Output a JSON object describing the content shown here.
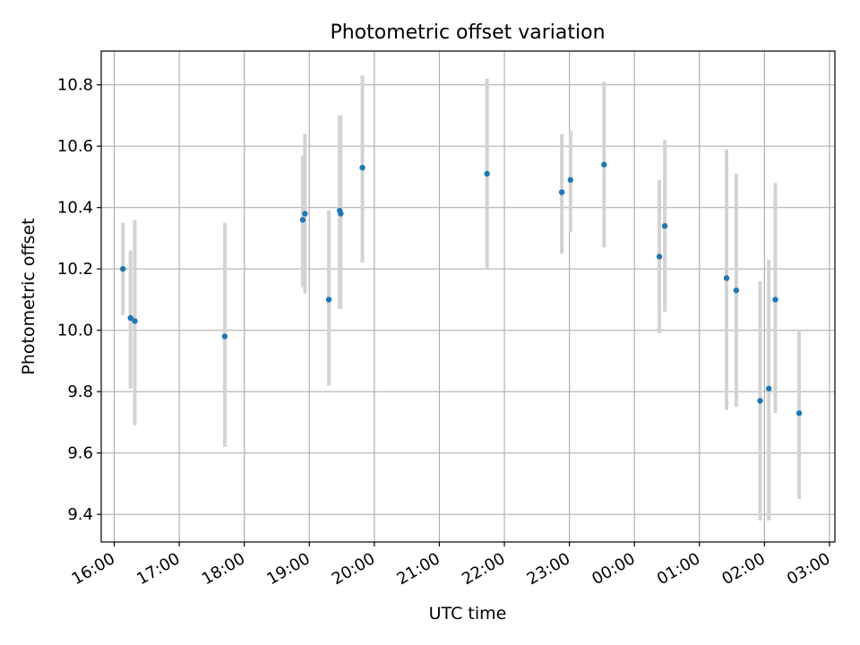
{
  "chart_data": {
    "type": "scatter",
    "title": "Photometric offset variation",
    "xlabel": "UTC time",
    "ylabel": "Photometric offset",
    "x_tick_labels": [
      "16:00",
      "17:00",
      "18:00",
      "19:00",
      "20:00",
      "21:00",
      "22:00",
      "23:00",
      "00:00",
      "01:00",
      "02:00",
      "03:00"
    ],
    "y_tick_labels": [
      "9.4",
      "9.6",
      "9.8",
      "10.0",
      "10.2",
      "10.4",
      "10.6",
      "10.8"
    ],
    "x_unit": "UTC time (hh:mm, continuing past midnight)",
    "xlim": [
      "15:48",
      "03:05"
    ],
    "ylim": [
      9.31,
      10.91
    ],
    "grid": true,
    "colors": {
      "points": "#1f77b4",
      "errorbars": "#d3d3d3",
      "grid": "#b0b0b0"
    },
    "series": [
      {
        "points": [
          {
            "x": "16:08",
            "y": 10.2,
            "yerr_low": 10.05,
            "yerr_high": 10.35
          },
          {
            "x": "16:15",
            "y": 10.04,
            "yerr_low": 9.81,
            "yerr_high": 10.26
          },
          {
            "x": "16:19",
            "y": 10.03,
            "yerr_low": 9.69,
            "yerr_high": 10.36
          },
          {
            "x": "17:42",
            "y": 9.98,
            "yerr_low": 9.62,
            "yerr_high": 10.35
          },
          {
            "x": "18:54",
            "y": 10.36,
            "yerr_low": 10.14,
            "yerr_high": 10.57
          },
          {
            "x": "18:56",
            "y": 10.38,
            "yerr_low": 10.12,
            "yerr_high": 10.64
          },
          {
            "x": "19:18",
            "y": 10.1,
            "yerr_low": 9.82,
            "yerr_high": 10.39
          },
          {
            "x": "19:28",
            "y": 10.39,
            "yerr_low": 10.07,
            "yerr_high": 10.7
          },
          {
            "x": "19:29",
            "y": 10.38,
            "yerr_low": 10.07,
            "yerr_high": 10.7
          },
          {
            "x": "19:49",
            "y": 10.53,
            "yerr_low": 10.22,
            "yerr_high": 10.83
          },
          {
            "x": "21:44",
            "y": 10.51,
            "yerr_low": 10.2,
            "yerr_high": 10.82
          },
          {
            "x": "22:53",
            "y": 10.45,
            "yerr_low": 10.25,
            "yerr_high": 10.64
          },
          {
            "x": "23:01",
            "y": 10.49,
            "yerr_low": 10.32,
            "yerr_high": 10.65
          },
          {
            "x": "23:32",
            "y": 10.54,
            "yerr_low": 10.27,
            "yerr_high": 10.81
          },
          {
            "x": "00:23",
            "y": 10.24,
            "yerr_low": 9.99,
            "yerr_high": 10.49
          },
          {
            "x": "00:28",
            "y": 10.34,
            "yerr_low": 10.06,
            "yerr_high": 10.62
          },
          {
            "x": "01:25",
            "y": 10.17,
            "yerr_low": 9.74,
            "yerr_high": 10.59
          },
          {
            "x": "01:34",
            "y": 10.13,
            "yerr_low": 9.75,
            "yerr_high": 10.51
          },
          {
            "x": "01:56",
            "y": 9.77,
            "yerr_low": 9.38,
            "yerr_high": 10.16
          },
          {
            "x": "02:04",
            "y": 9.81,
            "yerr_low": 9.38,
            "yerr_high": 10.23
          },
          {
            "x": "02:10",
            "y": 10.1,
            "yerr_low": 9.73,
            "yerr_high": 10.48
          },
          {
            "x": "02:32",
            "y": 9.73,
            "yerr_low": 9.45,
            "yerr_high": 10.0
          }
        ]
      }
    ]
  }
}
